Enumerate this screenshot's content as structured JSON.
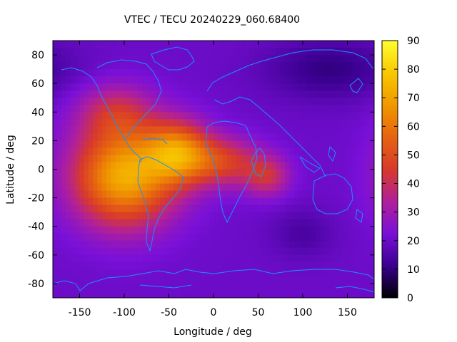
{
  "chart_data": {
    "type": "heatmap",
    "title": "VTEC / TECU 20240229_060.68400",
    "xlabel": "Longitude / deg",
    "ylabel": "Latitude / deg",
    "xlim": [
      -180,
      180
    ],
    "ylim": [
      -90,
      90
    ],
    "x_ticks": [
      -150,
      -100,
      -50,
      0,
      50,
      100,
      150
    ],
    "x_tick_labels": [
      "-150",
      "-100",
      "-50",
      "0",
      "50",
      "100",
      "150"
    ],
    "y_ticks": [
      80,
      60,
      40,
      20,
      0,
      -20,
      -40,
      -60,
      -80
    ],
    "y_tick_labels": [
      "80",
      "60",
      "40",
      "20",
      "0",
      "-20",
      "-40",
      "-60",
      "-80"
    ],
    "colorbar": {
      "range": [
        0,
        90
      ],
      "ticks": [
        0,
        10,
        20,
        30,
        40,
        50,
        60,
        70,
        80,
        90
      ],
      "tick_labels": [
        "0",
        "10",
        "20",
        "30",
        "40",
        "50",
        "60",
        "70",
        "80",
        "90"
      ],
      "colors": [
        "#000000",
        "#3a0090",
        "#7a10d8",
        "#b0209a",
        "#d83a2a",
        "#e66410",
        "#f09800",
        "#f8c800",
        "#ffff30"
      ]
    },
    "grid": false,
    "field": {
      "background": 20,
      "cells_deg": 5,
      "features": [
        {
          "lon": -100,
          "lat": -5,
          "amp": 52,
          "sx": 40,
          "sy": 24
        },
        {
          "lon": -40,
          "lat": 12,
          "amp": 38,
          "sx": 25,
          "sy": 15
        },
        {
          "lon": -110,
          "lat": 40,
          "amp": 18,
          "sx": 30,
          "sy": 14
        },
        {
          "lon": 10,
          "lat": 5,
          "amp": 25,
          "sx": 30,
          "sy": 12
        },
        {
          "lon": 60,
          "lat": -5,
          "amp": 20,
          "sx": 18,
          "sy": 10
        },
        {
          "lon": 130,
          "lat": 70,
          "amp": -10,
          "sx": 50,
          "sy": 15
        },
        {
          "lon": 100,
          "lat": -45,
          "amp": -6,
          "sx": 25,
          "sy": 12
        }
      ]
    },
    "overlay": "coastlines"
  }
}
